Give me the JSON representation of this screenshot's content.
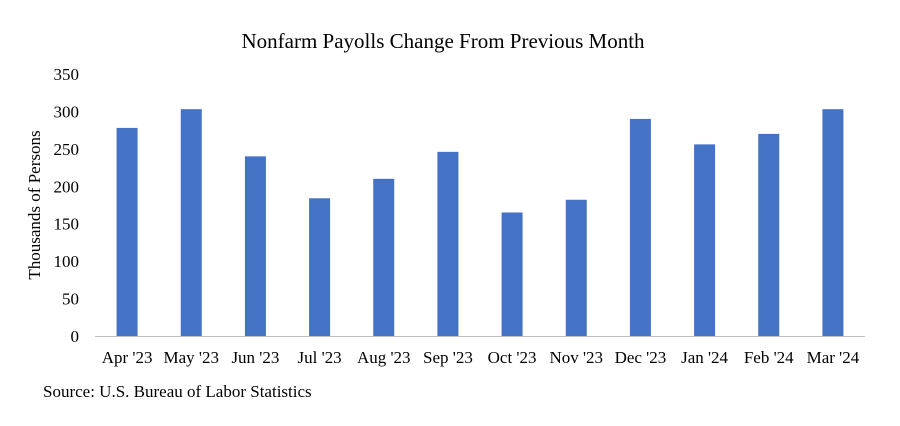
{
  "chart_data": {
    "type": "bar",
    "title": "Nonfarm Payolls Change From Previous Month",
    "xlabel": "",
    "ylabel": "Thousands of Persons",
    "categories": [
      "Apr '23",
      "May '23",
      "Jun '23",
      "Jul '23",
      "Aug '23",
      "Sep '23",
      "Oct '23",
      "Nov '23",
      "Dec '23",
      "Jan '24",
      "Feb '24",
      "Mar '24"
    ],
    "series": [
      {
        "values": [
          278,
          303,
          240,
          184,
          210,
          246,
          165,
          182,
          290,
          256,
          270,
          303
        ],
        "color": "#4472C4"
      }
    ],
    "ylim": [
      0,
      350
    ],
    "yticks": [
      0,
      50,
      100,
      150,
      200,
      250,
      300,
      350
    ],
    "grid": false,
    "legend": "none"
  },
  "source": "Source: U.S. Bureau of Labor Statistics"
}
